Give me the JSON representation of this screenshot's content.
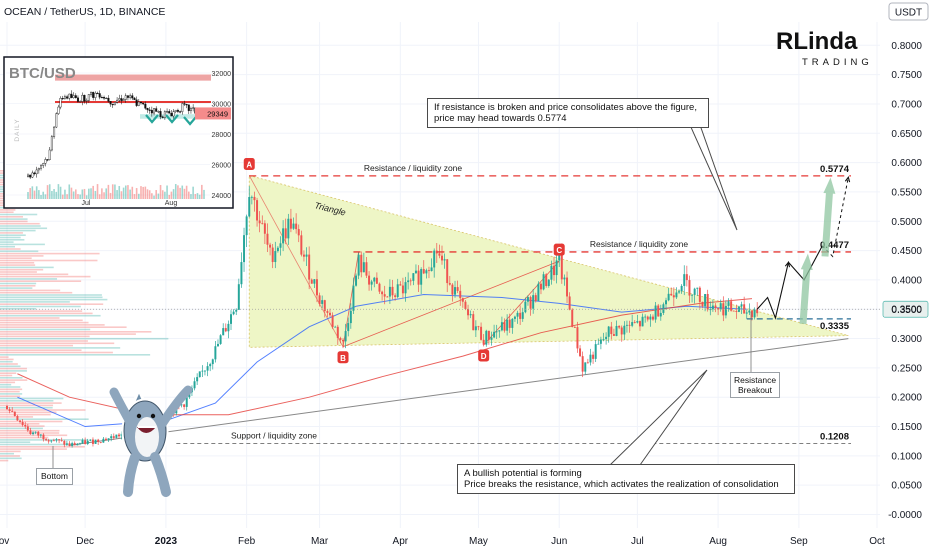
{
  "header": {
    "symbol_title": "OCEAN / TetherUS, 1D, BINANCE",
    "currency_badge": "USDT"
  },
  "logo": {
    "brand_line1": "RLinda",
    "brand_line2": "TRADING"
  },
  "colors": {
    "accent_red": "#e53935",
    "accent_blue": "#2962ff",
    "up_candle": "#26a69a",
    "down_candle": "#ef5350",
    "triangle_fill": "#eef6c6",
    "target_arrow": "#8fc5a0"
  },
  "chart_data": [
    {
      "type": "candlestick",
      "title": "OCEAN / TetherUS, 1D, BINANCE",
      "y_axis": {
        "ticks": [
          0.8,
          0.75,
          0.7,
          0.65,
          0.6,
          0.55,
          0.5,
          0.45,
          0.4,
          0.35,
          0.3,
          0.25,
          0.2,
          0.15,
          0.1,
          0.05,
          -0.0
        ],
        "tick_labels": [
          "0.8000",
          "0.7500",
          "0.7000",
          "0.6500",
          "0.6000",
          "0.5500",
          "0.5000",
          "0.4500",
          "0.4000",
          "0.3500",
          "0.3000",
          "0.2500",
          "0.2000",
          "0.1500",
          "0.1000",
          "0.0500",
          "-0.0000"
        ],
        "ylim": [
          -0.02,
          0.85
        ],
        "position": "right"
      },
      "x_axis": {
        "labels": [
          "ov",
          "Dec",
          "2023",
          "Feb",
          "Mar",
          "Apr",
          "May",
          "Jun",
          "Jul",
          "Aug",
          "Sep",
          "Oct"
        ]
      },
      "current_price": {
        "value": 0.35,
        "label": "0.3500"
      },
      "levels": [
        {
          "name": "Resistance / liquidity zone",
          "value": 0.5774,
          "label": "0.5774"
        },
        {
          "name": "Resistance / liquidity zone",
          "value": 0.4477,
          "label": "0.4477"
        },
        {
          "name": "",
          "value": 0.3335,
          "label": "0.3335"
        },
        {
          "name": "Support / liquidity zone",
          "value": 0.1208,
          "label": "0.1208"
        }
      ],
      "level_names": [
        "Resistance / liquidity zone",
        "Resistance / liquidity zone",
        "Support / liquidity zone"
      ],
      "pattern": {
        "name": "Triangle",
        "points": [
          {
            "label": "A",
            "date": "2023-02-02",
            "value": 0.578
          },
          {
            "label": "B",
            "date": "2023-03-10",
            "value": 0.286
          },
          {
            "label": "C",
            "date": "2023-06-01",
            "value": 0.432
          },
          {
            "label": "D",
            "date": "2023-05-03",
            "value": 0.289
          }
        ]
      },
      "annotations": [
        "If resistance is broken and price consolidates above the figure,",
        "price may head towards 0.5774",
        "A bullish potential is forming",
        "Price breaks the resistance, which activates the realization of consolidation",
        "Resistance",
        "Breakout",
        "Bottom"
      ],
      "price_path": [
        {
          "date": "2022-11-01",
          "value": 0.185
        },
        {
          "date": "2022-11-10",
          "value": 0.14
        },
        {
          "date": "2022-11-25",
          "value": 0.118
        },
        {
          "date": "2022-12-10",
          "value": 0.13
        },
        {
          "date": "2022-12-25",
          "value": 0.15
        },
        {
          "date": "2023-01-08",
          "value": 0.19
        },
        {
          "date": "2023-01-20",
          "value": 0.28
        },
        {
          "date": "2023-01-28",
          "value": 0.36
        },
        {
          "date": "2023-02-02",
          "value": 0.56
        },
        {
          "date": "2023-02-10",
          "value": 0.44
        },
        {
          "date": "2023-02-18",
          "value": 0.5
        },
        {
          "date": "2023-02-28",
          "value": 0.38
        },
        {
          "date": "2023-03-10",
          "value": 0.29
        },
        {
          "date": "2023-03-16",
          "value": 0.43
        },
        {
          "date": "2023-03-25",
          "value": 0.37
        },
        {
          "date": "2023-04-05",
          "value": 0.39
        },
        {
          "date": "2023-04-15",
          "value": 0.45
        },
        {
          "date": "2023-04-25",
          "value": 0.35
        },
        {
          "date": "2023-05-03",
          "value": 0.3
        },
        {
          "date": "2023-05-15",
          "value": 0.33
        },
        {
          "date": "2023-06-01",
          "value": 0.43
        },
        {
          "date": "2023-06-10",
          "value": 0.25
        },
        {
          "date": "2023-06-20",
          "value": 0.31
        },
        {
          "date": "2023-07-05",
          "value": 0.33
        },
        {
          "date": "2023-07-18",
          "value": 0.4
        },
        {
          "date": "2023-07-28",
          "value": 0.36
        },
        {
          "date": "2023-08-10",
          "value": 0.345
        },
        {
          "date": "2023-08-16",
          "value": 0.35
        }
      ],
      "projection_path": [
        {
          "date": "2023-08-16",
          "value": 0.35
        },
        {
          "date": "2023-08-20",
          "value": 0.37
        },
        {
          "date": "2023-08-23",
          "value": 0.335
        },
        {
          "date": "2023-08-28",
          "value": 0.43
        },
        {
          "date": "2023-09-03",
          "value": 0.4
        },
        {
          "date": "2023-09-10",
          "value": 0.458
        }
      ],
      "target_path": [
        {
          "date": "2023-09-10",
          "value": 0.458
        },
        {
          "date": "2023-09-14",
          "value": 0.44
        },
        {
          "date": "2023-09-20",
          "value": 0.575
        }
      ]
    },
    {
      "type": "candlestick",
      "title": "BTC/USD",
      "timeframe_label": "DAILY",
      "y_axis": {
        "tick_labels": [
          "32000",
          "30000",
          "28000",
          "26000",
          "24000"
        ],
        "ticks": [
          32000,
          30000,
          28000,
          26000,
          24000
        ],
        "ylim": [
          23600,
          32800
        ]
      },
      "x_axis": {
        "labels": [
          "Jul",
          "Aug"
        ]
      },
      "current_price": {
        "value": 29349,
        "label": "29349"
      },
      "resistance_zone": [
        31500,
        31900
      ],
      "support_line": 30100,
      "range_low_zone": [
        29000,
        29300
      ]
    }
  ]
}
